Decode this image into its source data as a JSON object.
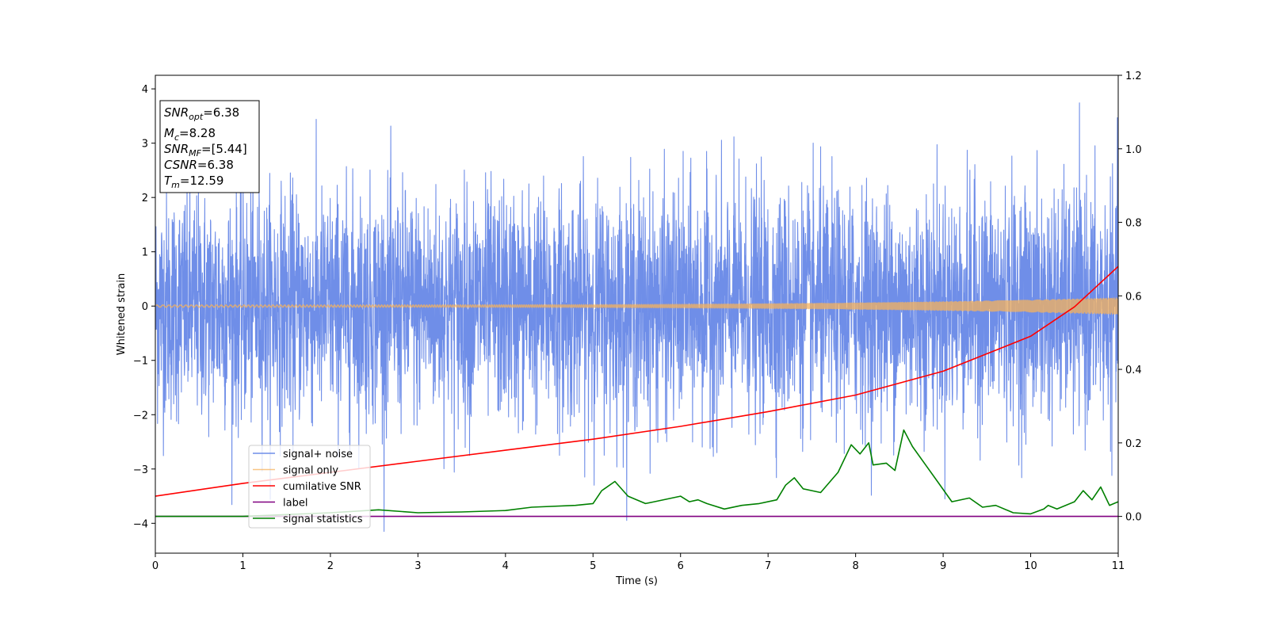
{
  "chart_data": {
    "type": "line",
    "xlabel": "Time (s)",
    "ylabel": "Whitened strain",
    "xlim": [
      0,
      11
    ],
    "ylim": [
      -4.55,
      4.25
    ],
    "y2lim": [
      -0.1,
      1.2
    ],
    "xticks": [
      "0",
      "1",
      "2",
      "3",
      "4",
      "5",
      "6",
      "7",
      "8",
      "9",
      "10",
      "11"
    ],
    "yticks": [
      "−4",
      "−3",
      "−2",
      "−1",
      "0",
      "1",
      "2",
      "3",
      "4"
    ],
    "y2ticks": [
      "0.0",
      "0.2",
      "0.4",
      "0.6",
      "0.8",
      "1.0",
      "1.2"
    ],
    "grid": false,
    "legend_position": "lower-left",
    "info_box": {
      "snr_opt": {
        "sym": "SNR",
        "sub": "opt",
        "value": "=6.38"
      },
      "mc": {
        "sym": "M",
        "sub": "c",
        "value": "=8.28"
      },
      "snr_mf": {
        "sym": "SNR",
        "sub": "MF",
        "value": "=[5.44]"
      },
      "csnr": {
        "sym": "CSNR",
        "value": "=6.38"
      },
      "tm": {
        "sym": "T",
        "sub": "m",
        "value": "=12.59"
      }
    },
    "series": [
      {
        "name": "signal+ noise",
        "color": "#6f8ee8",
        "axis": "left",
        "kind": "noise",
        "sigma": 1.0,
        "range": [
          -4.15,
          3.85
        ]
      },
      {
        "name": "signal only",
        "color": "#f5b25c",
        "axis": "left",
        "kind": "chirp",
        "amplitude_start": 0.02,
        "amplitude_end": 0.15
      },
      {
        "name": "cumilative SNR",
        "color": "#ff0000",
        "axis": "right",
        "x": [
          0,
          1,
          2,
          3,
          4,
          5,
          6,
          7,
          8,
          9,
          10,
          10.5,
          11
        ],
        "y": [
          0.055,
          0.09,
          0.12,
          0.15,
          0.18,
          0.21,
          0.245,
          0.285,
          0.33,
          0.395,
          0.49,
          0.57,
          0.68
        ]
      },
      {
        "name": "label",
        "color": "#800080",
        "axis": "right",
        "x": [
          0,
          11
        ],
        "y": [
          0.0,
          0.0
        ]
      },
      {
        "name": "signal statistics",
        "color": "#008000",
        "axis": "right",
        "x": [
          0,
          1,
          2,
          2.55,
          3,
          3.5,
          4,
          4.3,
          4.8,
          5,
          5.1,
          5.25,
          5.4,
          5.6,
          5.7,
          6,
          6.1,
          6.2,
          6.3,
          6.5,
          6.7,
          6.9,
          7.1,
          7.2,
          7.3,
          7.4,
          7.6,
          7.8,
          7.95,
          8.05,
          8.15,
          8.2,
          8.35,
          8.45,
          8.55,
          8.65,
          8.8,
          8.95,
          9.1,
          9.3,
          9.45,
          9.6,
          9.8,
          10,
          10.15,
          10.2,
          10.3,
          10.5,
          10.6,
          10.7,
          10.8,
          10.9,
          11
        ],
        "y": [
          0.0,
          0.0,
          0.01,
          0.018,
          0.01,
          0.012,
          0.016,
          0.025,
          0.03,
          0.035,
          0.07,
          0.095,
          0.055,
          0.035,
          0.04,
          0.055,
          0.04,
          0.045,
          0.035,
          0.02,
          0.03,
          0.035,
          0.045,
          0.085,
          0.105,
          0.075,
          0.065,
          0.12,
          0.195,
          0.17,
          0.2,
          0.14,
          0.145,
          0.125,
          0.235,
          0.19,
          0.14,
          0.09,
          0.04,
          0.05,
          0.025,
          0.03,
          0.01,
          0.007,
          0.02,
          0.03,
          0.02,
          0.04,
          0.07,
          0.045,
          0.08,
          0.03,
          0.04
        ]
      }
    ]
  }
}
